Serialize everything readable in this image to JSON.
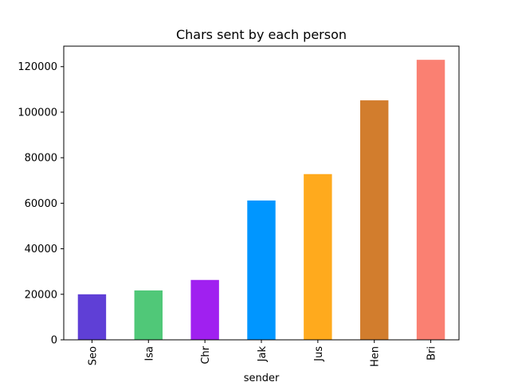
{
  "chart_data": {
    "type": "bar",
    "title": "Chars sent by each person",
    "xlabel": "sender",
    "ylabel": "",
    "categories": [
      "Seo",
      "Isa",
      "Chr",
      "Jak",
      "Jus",
      "Hen",
      "Bri"
    ],
    "values": [
      20000,
      21700,
      26300,
      61200,
      72800,
      105200,
      123000
    ],
    "colors": [
      "#5f3fd6",
      "#50c878",
      "#a020f0",
      "#0096ff",
      "#ffaa1d",
      "#d27d2d",
      "#fa8072"
    ],
    "ylim": [
      0,
      129000
    ],
    "yticks": [
      0,
      20000,
      40000,
      60000,
      80000,
      100000,
      120000
    ],
    "grid": false,
    "legend": "none"
  }
}
